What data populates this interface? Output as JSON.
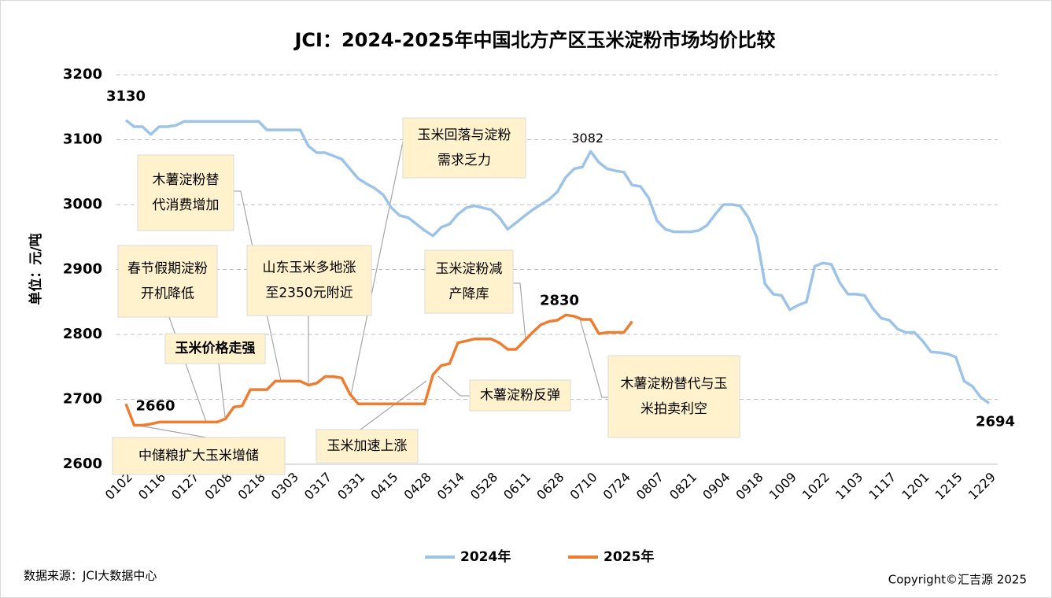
{
  "chart_data": {
    "type": "line",
    "title": "JCI：2024-2025年中国北方产区玉米淀粉市场均价比较",
    "y_label": "单位：元/吨",
    "source": "数据来源：JCI大数据中心",
    "copyright": "Copyright©汇吉源 2025",
    "ylim": [
      2600,
      3200
    ],
    "yticks": [
      2600,
      2700,
      2800,
      2900,
      3000,
      3100,
      3200
    ],
    "grid": true,
    "legend": "bottom",
    "categories": [
      "0102",
      null,
      null,
      null,
      "0116",
      null,
      null,
      null,
      "0127",
      null,
      null,
      null,
      "0208",
      null,
      null,
      null,
      "0218",
      null,
      null,
      null,
      "0303",
      null,
      null,
      null,
      "0317",
      null,
      null,
      null,
      "0331",
      null,
      null,
      null,
      "0415",
      null,
      null,
      null,
      "0428",
      null,
      null,
      null,
      "0514",
      null,
      null,
      null,
      "0528",
      null,
      null,
      null,
      "0611",
      null,
      null,
      null,
      "0628",
      null,
      null,
      null,
      "0710",
      null,
      null,
      null,
      "0724",
      null,
      null,
      null,
      "0807",
      null,
      null,
      null,
      "0821",
      null,
      null,
      null,
      "0904",
      null,
      null,
      null,
      "0918",
      null,
      null,
      null,
      "1009",
      null,
      null,
      null,
      "1022",
      null,
      null,
      null,
      "1103",
      null,
      null,
      null,
      "1117",
      null,
      null,
      null,
      "1201",
      null,
      null,
      null,
      "1215",
      null,
      null,
      null,
      "1229"
    ],
    "series": [
      {
        "name": "2024年",
        "color": "#9dc3e6",
        "values": [
          3130,
          3120,
          3120,
          3108,
          3120,
          3120,
          3122,
          3128,
          3128,
          3128,
          3128,
          3128,
          3128,
          3128,
          3128,
          3128,
          3128,
          3115,
          3115,
          3115,
          3115,
          3115,
          3090,
          3080,
          3080,
          3075,
          3070,
          3055,
          3040,
          3032,
          3025,
          3015,
          2995,
          2983,
          2980,
          2970,
          2960,
          2952,
          2965,
          2970,
          2985,
          2995,
          2998,
          2995,
          2992,
          2980,
          2962,
          2972,
          2982,
          2992,
          3000,
          3008,
          3020,
          3042,
          3055,
          3058,
          3082,
          3065,
          3055,
          3052,
          3050,
          3030,
          3028,
          3010,
          2975,
          2962,
          2958,
          2958,
          2958,
          2960,
          2968,
          2985,
          3000,
          3000,
          2998,
          2980,
          2950,
          2878,
          2862,
          2860,
          2838,
          2845,
          2850,
          2905,
          2910,
          2908,
          2880,
          2862,
          2862,
          2860,
          2840,
          2825,
          2822,
          2808,
          2803,
          2803,
          2790,
          2773,
          2772,
          2770,
          2765,
          2728,
          2720,
          2703,
          2694
        ],
        "point_labels": [
          {
            "index": 0,
            "color": "#ff0000",
            "bold": true
          },
          {
            "index": 56,
            "color": "#ff0000",
            "bold": false
          },
          {
            "index": 104,
            "color": "#00b050",
            "bold": true
          }
        ]
      },
      {
        "name": "2025年",
        "color": "#ed7d31",
        "values": [
          2693,
          2660,
          2660,
          2662,
          2665,
          2665,
          2665,
          2665,
          2665,
          2665,
          2665,
          2665,
          2670,
          2688,
          2690,
          2715,
          2715,
          2715,
          2728,
          2728,
          2728,
          2728,
          2722,
          2725,
          2735,
          2735,
          2733,
          2708,
          2693,
          2693,
          2693,
          2693,
          2693,
          2693,
          2693,
          2693,
          2693,
          2738,
          2752,
          2755,
          2787,
          2790,
          2793,
          2793,
          2793,
          2787,
          2777,
          2777,
          2790,
          2803,
          2815,
          2820,
          2822,
          2830,
          2828,
          2823,
          2823,
          2801,
          2803,
          2803,
          2803,
          2820,
          null,
          null,
          null,
          null,
          null,
          null,
          null,
          null,
          null,
          null,
          null,
          null,
          null,
          null,
          null,
          null,
          null,
          null,
          null,
          null,
          null,
          null,
          null,
          null,
          null,
          null,
          null,
          null,
          null,
          null,
          null,
          null,
          null,
          null,
          null,
          null,
          null,
          null,
          null,
          null,
          null,
          null,
          null
        ],
        "point_labels": [
          {
            "index": 1,
            "color": "#00b050",
            "bold": true
          },
          {
            "index": 53,
            "color": "#ff0000",
            "bold": true
          }
        ]
      }
    ],
    "annotations": [
      {
        "lines": [
          "玉米回落与淀粉",
          "需求乏力"
        ]
      },
      {
        "lines": [
          "木薯淀粉替",
          "代消费增加"
        ]
      },
      {
        "lines": [
          "春节假期淀粉",
          "开机降低"
        ]
      },
      {
        "lines": [
          "山东玉米多地涨",
          "至2350元附近"
        ]
      },
      {
        "lines": [
          "玉米价格走强"
        ],
        "color": "#c00000"
      },
      {
        "lines": [
          "中储粮扩大玉米增储"
        ]
      },
      {
        "lines": [
          "玉米加速上涨"
        ]
      },
      {
        "lines": [
          "玉米淀粉减",
          "产降库"
        ]
      },
      {
        "lines": [
          "木薯淀粉反弹"
        ]
      },
      {
        "lines": [
          "木薯淀粉替代与玉",
          "米拍卖利空"
        ]
      }
    ]
  }
}
